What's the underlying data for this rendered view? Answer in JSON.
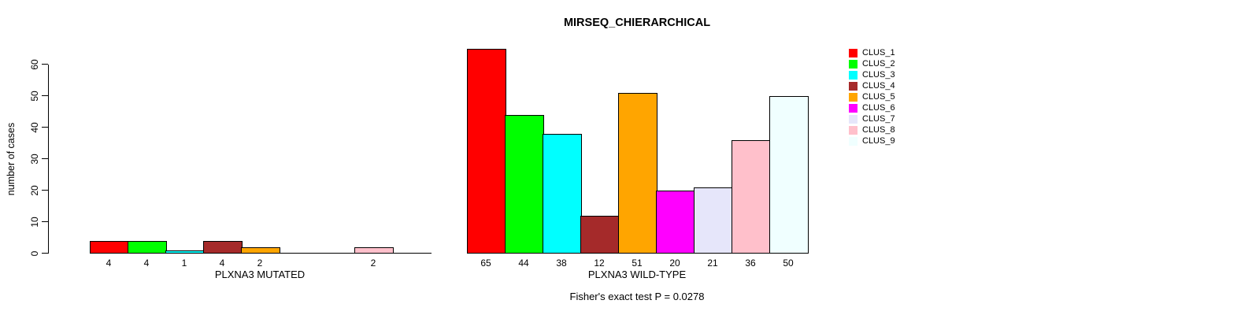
{
  "y_axis": {
    "label": "number of cases",
    "ticks": [
      0,
      10,
      20,
      30,
      40,
      50,
      60
    ]
  },
  "palette": [
    "#FF0000",
    "#00FF00",
    "#00FFFF",
    "#A52A2A",
    "#FFA500",
    "#FF00FF",
    "#E6E6FA",
    "#FFC0CB",
    "#F0FFFF"
  ],
  "legend": {
    "items": [
      {
        "label": "CLUS_1",
        "color": "#FF0000"
      },
      {
        "label": "CLUS_2",
        "color": "#00FF00"
      },
      {
        "label": "CLUS_3",
        "color": "#00FFFF"
      },
      {
        "label": "CLUS_4",
        "color": "#A52A2A"
      },
      {
        "label": "CLUS_5",
        "color": "#FFA500"
      },
      {
        "label": "CLUS_6",
        "color": "#FF00FF"
      },
      {
        "label": "CLUS_7",
        "color": "#E6E6FA"
      },
      {
        "label": "CLUS_8",
        "color": "#FFC0CB"
      },
      {
        "label": "CLUS_9",
        "color": "#F0FFFF"
      }
    ]
  },
  "chart_data": [
    {
      "type": "bar",
      "xlabel": "PLXNA3 MUTATED",
      "categories": [
        "CLUS_1",
        "CLUS_2",
        "CLUS_3",
        "CLUS_4",
        "CLUS_5",
        "CLUS_6",
        "CLUS_7",
        "CLUS_8",
        "CLUS_9"
      ],
      "values": [
        4,
        4,
        1,
        4,
        2,
        0,
        0,
        2,
        0
      ],
      "bar_labels": [
        "4",
        "4",
        "1",
        "4",
        "2",
        "",
        "",
        "2",
        ""
      ],
      "ylabel": "number of cases",
      "ylim": [
        0,
        65
      ],
      "yticks": [
        0,
        10,
        20,
        30,
        40,
        50,
        60
      ],
      "grid": false
    },
    {
      "type": "bar",
      "title": "MIRSEQ_CHIERARCHICAL",
      "xlabel": "PLXNA3 WILD-TYPE",
      "categories": [
        "CLUS_1",
        "CLUS_2",
        "CLUS_3",
        "CLUS_4",
        "CLUS_5",
        "CLUS_6",
        "CLUS_7",
        "CLUS_8",
        "CLUS_9"
      ],
      "values": [
        65,
        44,
        38,
        12,
        51,
        20,
        21,
        36,
        50
      ],
      "bar_labels": [
        "65",
        "44",
        "38",
        "12",
        "51",
        "20",
        "21",
        "36",
        "50"
      ],
      "ylim": [
        0,
        65
      ],
      "yticks": [
        0,
        10,
        20,
        30,
        40,
        50,
        60
      ],
      "grid": false,
      "annotation": "Fisher's exact test P = 0.0278",
      "legend_position": "right"
    }
  ]
}
